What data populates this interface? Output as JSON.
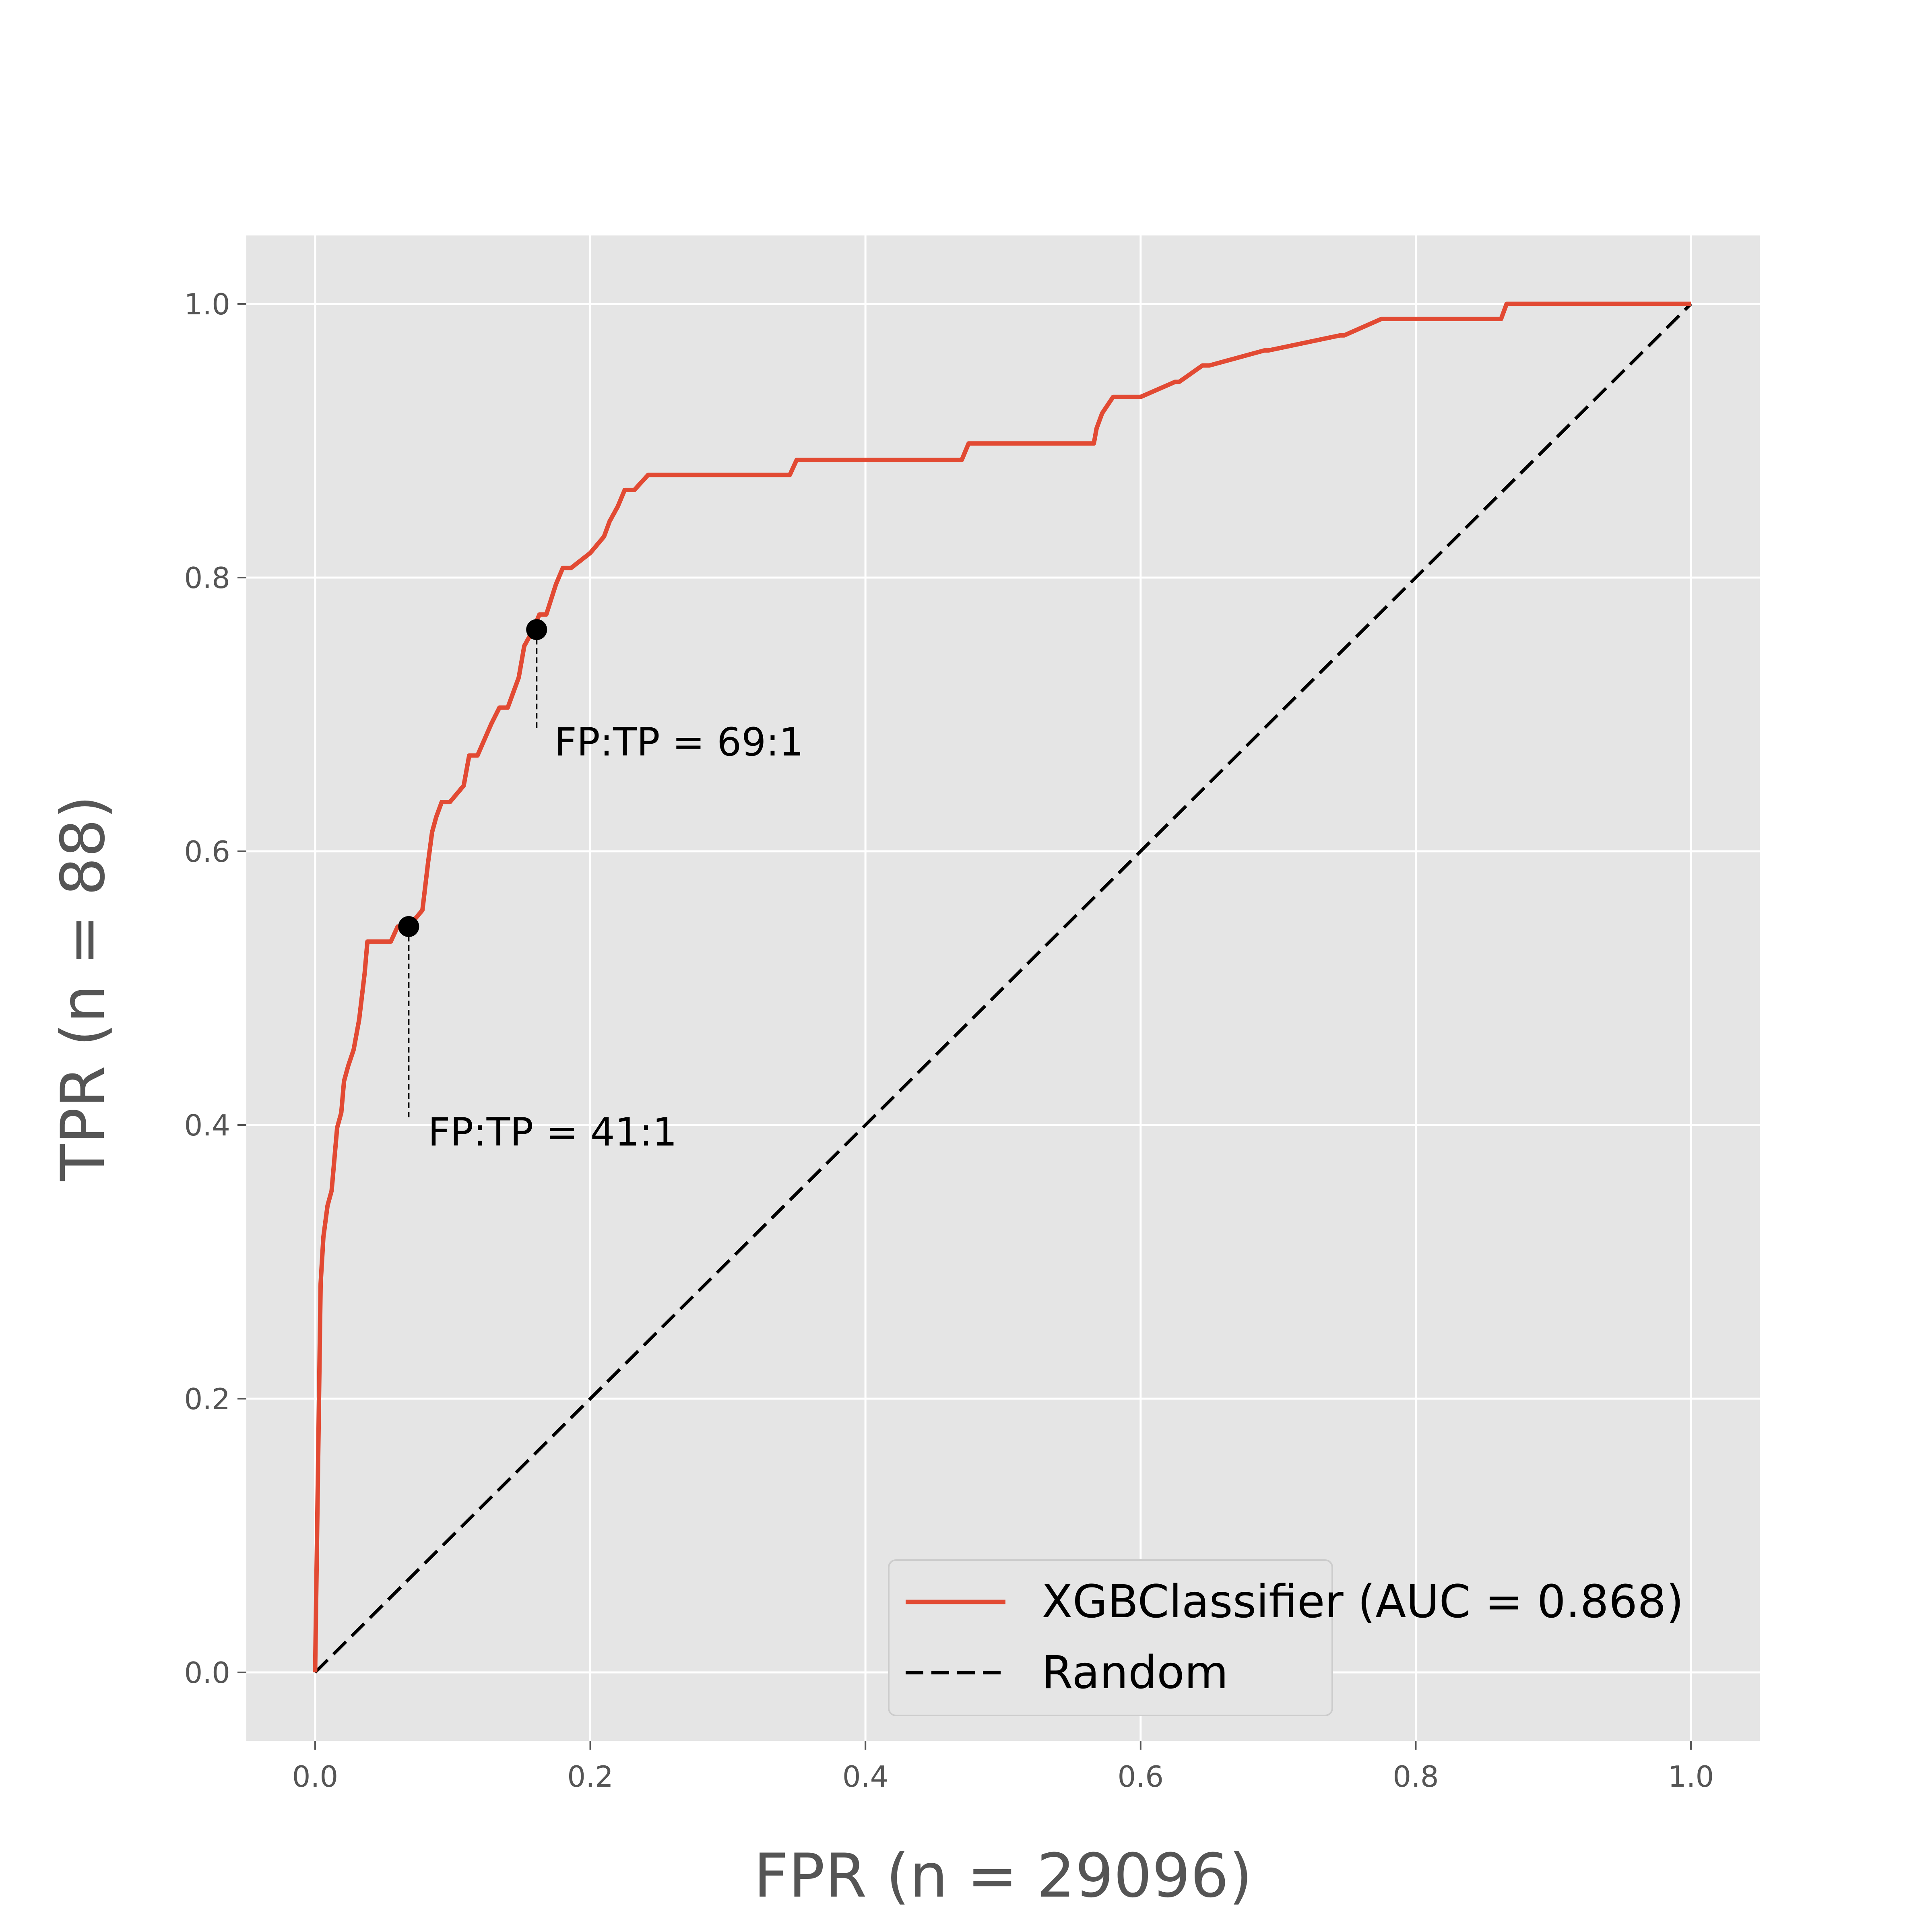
{
  "chart_data": {
    "type": "line",
    "xlabel": "FPR (n = 29096)",
    "ylabel": "TPR (n = 88)",
    "xlim": [
      -0.05,
      1.05
    ],
    "ylim": [
      -0.05,
      1.05
    ],
    "grid": true,
    "legend_position": "lower-right",
    "x_ticks": [
      0.0,
      0.2,
      0.4,
      0.6,
      0.8,
      1.0
    ],
    "x_tick_labels": [
      "0.0",
      "0.2",
      "0.4",
      "0.6",
      "0.8",
      "1.0"
    ],
    "y_ticks": [
      0.0,
      0.2,
      0.4,
      0.6,
      0.8,
      1.0
    ],
    "y_tick_labels": [
      "0.0",
      "0.2",
      "0.4",
      "0.6",
      "0.8",
      "1.0"
    ],
    "series": [
      {
        "name": "XGBClassifier (AUC = 0.868)",
        "color": "#e24a33",
        "style": "solid",
        "x": [
          0.0,
          0.004,
          0.006,
          0.009,
          0.012,
          0.016,
          0.019,
          0.021,
          0.024,
          0.028,
          0.032,
          0.036,
          0.038,
          0.055,
          0.06,
          0.068,
          0.078,
          0.082,
          0.085,
          0.088,
          0.092,
          0.098,
          0.108,
          0.112,
          0.118,
          0.128,
          0.134,
          0.14,
          0.148,
          0.152,
          0.158,
          0.163,
          0.168,
          0.175,
          0.18,
          0.186,
          0.2,
          0.21,
          0.214,
          0.22,
          0.225,
          0.232,
          0.242,
          0.345,
          0.35,
          0.47,
          0.475,
          0.566,
          0.568,
          0.572,
          0.58,
          0.6,
          0.625,
          0.628,
          0.645,
          0.65,
          0.69,
          0.693,
          0.745,
          0.748,
          0.775,
          0.778,
          0.862,
          0.866,
          1.0
        ],
        "y": [
          0.0,
          0.284,
          0.318,
          0.341,
          0.352,
          0.398,
          0.409,
          0.432,
          0.443,
          0.455,
          0.477,
          0.511,
          0.534,
          0.534,
          0.545,
          0.545,
          0.557,
          0.591,
          0.614,
          0.625,
          0.636,
          0.636,
          0.648,
          0.67,
          0.67,
          0.693,
          0.705,
          0.705,
          0.727,
          0.75,
          0.761,
          0.773,
          0.773,
          0.795,
          0.807,
          0.807,
          0.818,
          0.83,
          0.841,
          0.852,
          0.864,
          0.864,
          0.875,
          0.875,
          0.886,
          0.886,
          0.898,
          0.898,
          0.909,
          0.92,
          0.932,
          0.932,
          0.943,
          0.943,
          0.955,
          0.955,
          0.966,
          0.966,
          0.977,
          0.977,
          0.989,
          0.989,
          0.989,
          1.0,
          1.0
        ]
      },
      {
        "name": "Random",
        "color": "#000000",
        "style": "dashed",
        "x": [
          0.0,
          1.0
        ],
        "y": [
          0.0,
          1.0
        ]
      }
    ],
    "points": [
      {
        "x": 0.068,
        "y": 0.545,
        "label": "FP:TP = 41:1",
        "label_x": 0.082,
        "label_y": 0.395
      },
      {
        "x": 0.161,
        "y": 0.762,
        "label": "FP:TP = 69:1",
        "label_x": 0.174,
        "label_y": 0.68
      }
    ]
  }
}
